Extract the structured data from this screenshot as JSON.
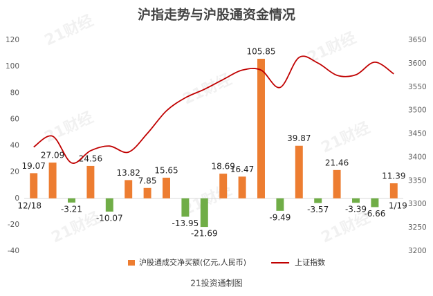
{
  "chart_data": {
    "type": "bar_line",
    "title": "沪指走势与沪股通资金情况",
    "source": "21投资通制图",
    "watermark": "21财经",
    "categories": [
      "12/18",
      null,
      null,
      null,
      null,
      null,
      null,
      null,
      null,
      null,
      null,
      null,
      null,
      null,
      null,
      null,
      null,
      null,
      null,
      "1/19"
    ],
    "series": [
      {
        "name": "沪股通成交净买额(亿元,人民币)",
        "type": "bar",
        "color": "#ed7d31",
        "negative_color": "#70ad47",
        "values": [
          19.07,
          27.09,
          -3.21,
          24.56,
          -10.07,
          13.82,
          7.85,
          15.65,
          -13.95,
          -21.69,
          18.69,
          16.47,
          105.85,
          -9.49,
          39.87,
          -3.57,
          21.46,
          -3.39,
          -6.66,
          11.39
        ]
      },
      {
        "name": "上证指数",
        "type": "line",
        "axis": "y2",
        "color": "#c00000",
        "values": [
          3422,
          3445,
          3388,
          3414,
          3424,
          3411,
          3451,
          3499,
          3527,
          3545,
          3566,
          3586,
          3586,
          3549,
          3613,
          3601,
          3575,
          3576,
          3603,
          3578
        ]
      }
    ],
    "ylim": [
      -40,
      120
    ],
    "yticks": [
      -40,
      -20,
      0,
      20,
      40,
      60,
      80,
      100,
      120
    ],
    "y2lim": [
      3200,
      3650
    ],
    "y2ticks": [
      3200,
      3250,
      3300,
      3350,
      3400,
      3450,
      3500,
      3550,
      3600,
      3650
    ]
  }
}
